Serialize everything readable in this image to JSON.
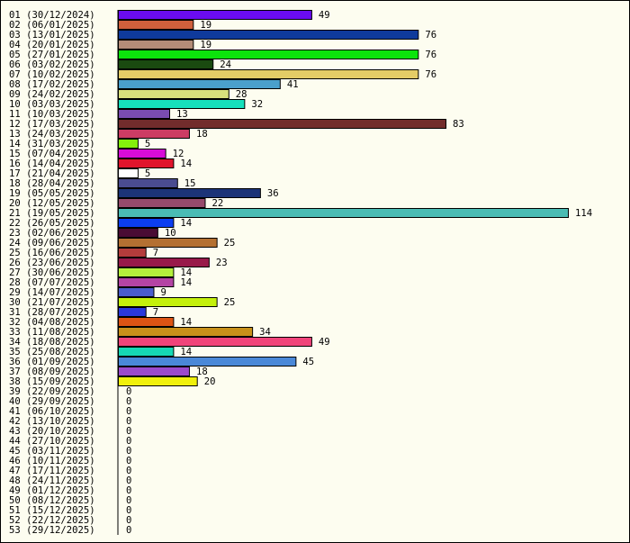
{
  "chart_data": {
    "type": "bar",
    "orientation": "horizontal",
    "categories": [
      "01 (30/12/2024)",
      "02 (06/01/2025)",
      "03 (13/01/2025)",
      "04 (20/01/2025)",
      "05 (27/01/2025)",
      "06 (03/02/2025)",
      "07 (10/02/2025)",
      "08 (17/02/2025)",
      "09 (24/02/2025)",
      "10 (03/03/2025)",
      "11 (10/03/2025)",
      "12 (17/03/2025)",
      "13 (24/03/2025)",
      "14 (31/03/2025)",
      "15 (07/04/2025)",
      "16 (14/04/2025)",
      "17 (21/04/2025)",
      "18 (28/04/2025)",
      "19 (05/05/2025)",
      "20 (12/05/2025)",
      "21 (19/05/2025)",
      "22 (26/05/2025)",
      "23 (02/06/2025)",
      "24 (09/06/2025)",
      "25 (16/06/2025)",
      "26 (23/06/2025)",
      "27 (30/06/2025)",
      "28 (07/07/2025)",
      "29 (14/07/2025)",
      "30 (21/07/2025)",
      "31 (28/07/2025)",
      "32 (04/08/2025)",
      "33 (11/08/2025)",
      "34 (18/08/2025)",
      "35 (25/08/2025)",
      "36 (01/09/2025)",
      "37 (08/09/2025)",
      "38 (15/09/2025)",
      "39 (22/09/2025)",
      "40 (29/09/2025)",
      "41 (06/10/2025)",
      "42 (13/10/2025)",
      "43 (20/10/2025)",
      "44 (27/10/2025)",
      "45 (03/11/2025)",
      "46 (10/11/2025)",
      "47 (17/11/2025)",
      "48 (24/11/2025)",
      "49 (01/12/2025)",
      "50 (08/12/2025)",
      "51 (15/12/2025)",
      "52 (22/12/2025)",
      "53 (29/12/2025)"
    ],
    "values": [
      49,
      19,
      76,
      19,
      76,
      24,
      76,
      41,
      28,
      32,
      13,
      83,
      18,
      5,
      12,
      14,
      5,
      15,
      36,
      22,
      114,
      14,
      10,
      25,
      7,
      23,
      14,
      14,
      9,
      25,
      7,
      14,
      34,
      49,
      14,
      45,
      18,
      20,
      0,
      0,
      0,
      0,
      0,
      0,
      0,
      0,
      0,
      0,
      0,
      0,
      0,
      0,
      0
    ],
    "colors": [
      "#6a0cf0",
      "#d0603c",
      "#0f3a9c",
      "#b48c78",
      "#0ce40c",
      "#1a4a10",
      "#e4cc66",
      "#4aa0cc",
      "#d8e07c",
      "#16e0bc",
      "#7a4cb0",
      "#722c2c",
      "#cc3c64",
      "#84f00c",
      "#d80cd8",
      "#e0142c",
      "#ffffff",
      "#4a4c90",
      "#1c3478",
      "#964a6c",
      "#4abcb4",
      "#0c3ef0",
      "#4a0c34",
      "#b47032",
      "#b43c3c",
      "#981a4a",
      "#b4f03c",
      "#b444a4",
      "#4a5ccc",
      "#c4f00c",
      "#2a38dc",
      "#dc5414",
      "#c8901a",
      "#f0447a",
      "#16d8b4",
      "#4a88d8",
      "#9c4acc",
      "#f0f00c",
      "#ffffff",
      "#ffffff",
      "#ffffff",
      "#ffffff",
      "#ffffff",
      "#ffffff",
      "#ffffff",
      "#ffffff",
      "#ffffff",
      "#ffffff",
      "#ffffff",
      "#ffffff",
      "#ffffff",
      "#ffffff",
      "#ffffff"
    ],
    "xlim": [
      0,
      114
    ],
    "grid": false,
    "legend": "none",
    "data_labels": true,
    "title": "",
    "xlabel": "",
    "ylabel": ""
  }
}
